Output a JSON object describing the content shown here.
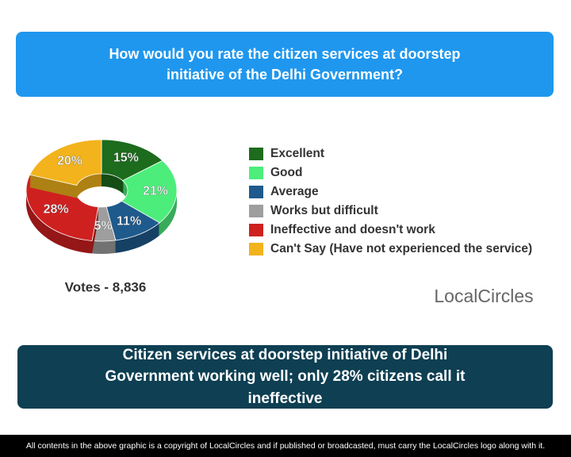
{
  "chart_data": {
    "type": "pie",
    "donut": true,
    "title": "How would you rate the citizen services at doorstep initiative of the Delhi Government?",
    "categories": [
      "Excellent",
      "Good",
      "Average",
      "Works but difficult",
      "Ineffective and doesn't work",
      "Can't Say (Have not experienced the service)"
    ],
    "values": [
      15,
      21,
      11,
      5,
      28,
      20
    ],
    "value_labels": [
      "15%",
      "21%",
      "11%",
      "5%",
      "28%",
      "20%"
    ],
    "colors": [
      "#1d6b1d",
      "#4ded7c",
      "#1f5a8c",
      "#9e9e9e",
      "#cf2020",
      "#f2b31c"
    ]
  },
  "votes": "Votes - 8,836",
  "logo": "LocalCircles",
  "headline": "Citizen services at doorstep initiative of Delhi Government working well; only 28% citizens call it ineffective",
  "footer": "All contents in the above graphic is a copyright of LocalCircles and if published or broadcasted, must carry the LocalCircles logo along with it."
}
